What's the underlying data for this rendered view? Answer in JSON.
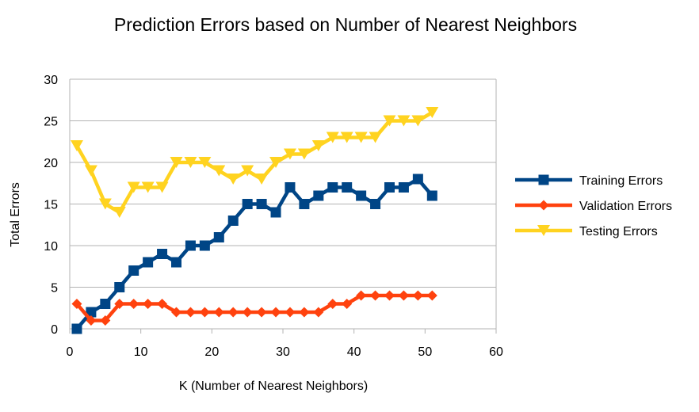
{
  "chart_data": {
    "type": "line",
    "title": "Prediction Errors based on Number of Nearest Neighbors",
    "xlabel": "K (Number of Nearest Neighbors)",
    "ylabel": "Total Errors",
    "xlim": [
      0,
      60
    ],
    "ylim": [
      0,
      30
    ],
    "xticks": [
      0,
      10,
      20,
      30,
      40,
      50,
      60
    ],
    "yticks": [
      0,
      5,
      10,
      15,
      20,
      25,
      30
    ],
    "grid": "horizontal",
    "legend": "right",
    "x": [
      1,
      3,
      5,
      7,
      9,
      11,
      13,
      15,
      17,
      19,
      21,
      23,
      25,
      27,
      29,
      31,
      33,
      35,
      37,
      39,
      41,
      43,
      45,
      47,
      49,
      51
    ],
    "series": [
      {
        "name": "Training Errors",
        "color": "#004586",
        "marker": "square",
        "values": [
          0,
          2,
          3,
          5,
          7,
          8,
          9,
          8,
          10,
          10,
          11,
          13,
          15,
          15,
          14,
          17,
          15,
          16,
          17,
          17,
          16,
          15,
          17,
          17,
          18,
          16
        ]
      },
      {
        "name": "Validation Errors",
        "color": "#ff420e",
        "marker": "diamond",
        "values": [
          3,
          1,
          1,
          3,
          3,
          3,
          3,
          2,
          2,
          2,
          2,
          2,
          2,
          2,
          2,
          2,
          2,
          2,
          3,
          3,
          4,
          4,
          4,
          4,
          4,
          4
        ]
      },
      {
        "name": "Testing Errors",
        "color": "#ffd320",
        "marker": "triangle-down",
        "values": [
          22,
          19,
          15,
          14,
          17,
          17,
          17,
          20,
          20,
          20,
          19,
          18,
          19,
          18,
          20,
          21,
          21,
          22,
          23,
          23,
          23,
          23,
          25,
          25,
          25,
          26
        ]
      }
    ]
  }
}
